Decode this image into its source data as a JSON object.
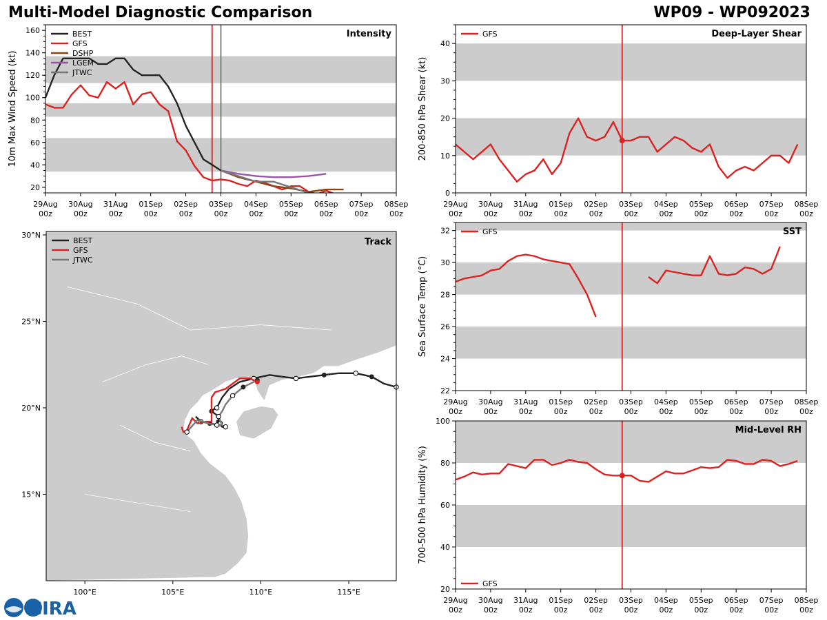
{
  "header": {
    "title": "Multi-Model Diagnostic Comparison",
    "storm_id": "WP09 - WP092023"
  },
  "colors": {
    "BEST": "#222222",
    "GFS": "#dd2020",
    "DSHP": "#8b4513",
    "LGEM": "#9955aa",
    "JTWC": "#777777",
    "band": "#cccccc",
    "land": "#cccccc"
  },
  "time_ticks": [
    "29Aug",
    "30Aug",
    "31Aug",
    "01Sep",
    "02Sep",
    "03Sep",
    "04Sep",
    "05Sep",
    "06Sep",
    "07Sep",
    "08Sep"
  ],
  "time_sub": "00z",
  "logo": {
    "text": "CIRA"
  },
  "chart_data": [
    {
      "id": "intensity",
      "type": "line",
      "title": "Intensity",
      "ylabel": "10m Max Wind Speed (kt)",
      "xlim": [
        0,
        10
      ],
      "ylim": [
        15,
        165
      ],
      "yticks": [
        20,
        40,
        60,
        80,
        100,
        120,
        140,
        160
      ],
      "bands": [
        [
          34,
          64
        ],
        [
          83,
          95
        ],
        [
          113,
          137
        ]
      ],
      "vlines": [
        {
          "x": 4.75,
          "color": "GFS"
        },
        {
          "x": 5.0,
          "color": "JTWC"
        }
      ],
      "legend": [
        "BEST",
        "GFS",
        "DSHP",
        "LGEM",
        "JTWC"
      ],
      "series": [
        {
          "name": "BEST",
          "x": [
            0,
            0.25,
            0.5,
            0.75,
            1,
            1.25,
            1.5,
            1.75,
            2,
            2.25,
            2.5,
            2.75,
            3,
            3.25,
            3.5,
            3.75,
            4,
            4.25,
            4.5,
            4.75,
            5
          ],
          "y": [
            100,
            120,
            135,
            135,
            135,
            135,
            130,
            130,
            135,
            135,
            125,
            120,
            120,
            120,
            110,
            95,
            75,
            60,
            45,
            40,
            35
          ]
        },
        {
          "name": "GFS",
          "x": [
            0,
            0.25,
            0.5,
            0.75,
            1,
            1.25,
            1.5,
            1.75,
            2,
            2.25,
            2.5,
            2.75,
            3,
            3.25,
            3.5,
            3.75,
            4,
            4.25,
            4.5,
            4.75,
            5,
            5.25,
            5.5,
            5.75,
            6,
            6.25,
            6.5,
            6.75,
            7,
            7.25,
            7.5,
            7.75,
            8,
            8.25
          ],
          "y": [
            94,
            91,
            91,
            103,
            111,
            102,
            100,
            114,
            108,
            114,
            94,
            103,
            105,
            94,
            88,
            61,
            53,
            39,
            29,
            26,
            27,
            26,
            23,
            21,
            26,
            24,
            21,
            18,
            21,
            21,
            16,
            14,
            17,
            14
          ]
        },
        {
          "name": "DSHP",
          "x": [
            5,
            5.5,
            6,
            6.5,
            7,
            7.5,
            8,
            8.5
          ],
          "y": [
            35,
            29,
            25,
            21,
            19,
            16,
            18,
            18
          ]
        },
        {
          "name": "LGEM",
          "x": [
            5,
            5.5,
            6,
            6.5,
            7,
            7.5,
            8
          ],
          "y": [
            35,
            32,
            30,
            29,
            29,
            30,
            32
          ]
        },
        {
          "name": "JTWC",
          "x": [
            5,
            5.5,
            6,
            6.5,
            7,
            7.5
          ],
          "y": [
            35,
            30,
            25,
            25,
            20,
            15
          ]
        }
      ]
    },
    {
      "id": "shear",
      "type": "line",
      "title": "Deep-Layer Shear",
      "ylabel": "200-850 hPa Shear (kt)",
      "xlim": [
        0,
        10
      ],
      "ylim": [
        0,
        45
      ],
      "yticks": [
        0,
        10,
        20,
        30,
        40
      ],
      "bands": [
        [
          10,
          20
        ],
        [
          30,
          40
        ]
      ],
      "vlines": [
        {
          "x": 4.75,
          "color": "GFS"
        }
      ],
      "marker": {
        "x": 4.75,
        "y": 14
      },
      "legend": [
        "GFS"
      ],
      "series": [
        {
          "name": "GFS",
          "x": [
            0,
            0.25,
            0.5,
            0.75,
            1,
            1.25,
            1.5,
            1.75,
            2,
            2.25,
            2.5,
            2.75,
            3,
            3.25,
            3.5,
            3.75,
            4,
            4.25,
            4.5,
            4.75,
            5,
            5.25,
            5.5,
            5.75,
            6,
            6.25,
            6.5,
            6.75,
            7,
            7.25,
            7.5,
            7.75,
            8,
            8.25,
            8.5,
            8.75,
            9,
            9.25,
            9.5,
            9.75
          ],
          "y": [
            13,
            11,
            9,
            11,
            13,
            9,
            6,
            3,
            5,
            6,
            9,
            5,
            8,
            16,
            20,
            15,
            14,
            15,
            19,
            14,
            14,
            15,
            15,
            11,
            13,
            15,
            14,
            12,
            11,
            13,
            7,
            4,
            6,
            7,
            6,
            8,
            10,
            10,
            8,
            13
          ]
        }
      ]
    },
    {
      "id": "sst",
      "type": "line",
      "title": "SST",
      "ylabel": "Sea Surface Temp (°C)",
      "xlim": [
        0,
        10
      ],
      "ylim": [
        22,
        32.5
      ],
      "yticks": [
        22,
        24,
        26,
        28,
        30,
        32
      ],
      "bands": [
        [
          24,
          26
        ],
        [
          28,
          30
        ],
        [
          32,
          32.5
        ]
      ],
      "vlines": [
        {
          "x": 4.75,
          "color": "GFS"
        }
      ],
      "legend": [
        "GFS"
      ],
      "series": [
        {
          "name": "GFS",
          "x": [
            0,
            0.25,
            0.5,
            0.75,
            1,
            1.25,
            1.5,
            1.75,
            2,
            2.25,
            2.5,
            2.75,
            3,
            3.25,
            3.5,
            3.75,
            4
          ],
          "y": [
            28.8,
            29.0,
            29.1,
            29.2,
            29.5,
            29.6,
            30.1,
            30.4,
            30.5,
            30.4,
            30.2,
            30.1,
            30.0,
            29.9,
            29.0,
            28.0,
            26.6
          ]
        },
        {
          "name": "GFS",
          "x": [
            5.5,
            5.75,
            6,
            6.25,
            6.5,
            6.75,
            7,
            7.25,
            7.5,
            7.75,
            8,
            8.25,
            8.5,
            8.75,
            9,
            9.25
          ],
          "y": [
            29.1,
            28.7,
            29.5,
            29.4,
            29.3,
            29.2,
            29.2,
            30.4,
            29.3,
            29.2,
            29.3,
            29.7,
            29.6,
            29.3,
            29.6,
            31.0
          ]
        }
      ]
    },
    {
      "id": "rh",
      "type": "line",
      "title": "Mid-Level RH",
      "ylabel": "700-500 hPa Humidity (%)",
      "xlim": [
        0,
        10
      ],
      "ylim": [
        20,
        100
      ],
      "yticks": [
        20,
        40,
        60,
        80,
        100
      ],
      "bands": [
        [
          40,
          60
        ],
        [
          80,
          100
        ]
      ],
      "vlines": [
        {
          "x": 4.75,
          "color": "GFS"
        }
      ],
      "marker": {
        "x": 4.75,
        "y": 74
      },
      "legend": [
        "GFS"
      ],
      "legend_position": "bottom-left",
      "series": [
        {
          "name": "GFS",
          "x": [
            0,
            0.25,
            0.5,
            0.75,
            1,
            1.25,
            1.5,
            1.75,
            2,
            2.25,
            2.5,
            2.75,
            3,
            3.25,
            3.5,
            3.75,
            4,
            4.25,
            4.5,
            4.75,
            5,
            5.25,
            5.5,
            5.75,
            6,
            6.25,
            6.5,
            6.75,
            7,
            7.25,
            7.5,
            7.75,
            8,
            8.25,
            8.5,
            8.75,
            9,
            9.25,
            9.5,
            9.75
          ],
          "y": [
            72,
            73.5,
            75.5,
            74.5,
            75,
            75,
            79.5,
            78.5,
            77.5,
            81.5,
            81.5,
            79,
            80,
            81.5,
            80.5,
            80,
            77,
            74.5,
            74,
            74,
            74,
            71.5,
            71,
            73.5,
            76,
            75,
            75,
            76.5,
            78,
            77.5,
            78,
            81.5,
            81,
            79.5,
            79.5,
            81.5,
            81,
            78.5,
            79.5,
            81
          ]
        }
      ]
    },
    {
      "id": "track",
      "type": "scatter",
      "title": "Track",
      "xlim": [
        97.8,
        117.7
      ],
      "ylim": [
        10,
        30.2
      ],
      "xticks": [
        100,
        105,
        110,
        115
      ],
      "xtick_labels": [
        "100°E",
        "105°E",
        "110°E",
        "115°E"
      ],
      "yticks": [
        15,
        20,
        25,
        30
      ],
      "ytick_labels": [
        "15°N",
        "20°N",
        "25°N",
        "30°N"
      ],
      "legend": [
        "BEST",
        "GFS",
        "JTWC"
      ],
      "series": [
        {
          "name": "BEST",
          "lon": [
            117.7,
            117,
            116.3,
            115.4,
            114.4,
            113.6,
            112.8,
            112,
            111.2,
            110.5,
            109.6,
            108.8,
            108.2,
            107.8,
            107.5,
            107.3,
            107.2,
            107.6,
            107.6,
            107.7,
            107.8,
            108.0,
            107.6,
            107.1,
            106.6,
            106.3
          ],
          "lat": [
            21.2,
            21.4,
            21.8,
            22.0,
            22.0,
            21.9,
            21.8,
            21.7,
            21.8,
            21.9,
            21.7,
            21.5,
            21.1,
            20.6,
            20.0,
            19.9,
            19.8,
            19.5,
            19.2,
            19.1,
            18.9,
            18.9,
            19.0,
            19.1,
            19.2,
            19.5
          ],
          "open": [
            1,
            0,
            0,
            1,
            0,
            0,
            0,
            1,
            0,
            0,
            1,
            0,
            0,
            0,
            1,
            0,
            0,
            1,
            0,
            1,
            0,
            1,
            0,
            0,
            1,
            0
          ],
          "dot": [
            0,
            0,
            1,
            0,
            0,
            1,
            0,
            0,
            0,
            0,
            1,
            0,
            0,
            0,
            1,
            0,
            1,
            0,
            1,
            0,
            0,
            1,
            0,
            1,
            1,
            0
          ]
        },
        {
          "name": "GFS",
          "lon": [
            109.8,
            109.4,
            108.8,
            108.4,
            108.0,
            107.4,
            107.2,
            107.2,
            106.9,
            106.4,
            106.1,
            105.8,
            105.6,
            105.5
          ],
          "lat": [
            21.5,
            21.7,
            21.7,
            21.4,
            21.1,
            20.9,
            20.6,
            19.2,
            19.2,
            19.1,
            19.4,
            18.7,
            18.6,
            18.9
          ]
        },
        {
          "name": "JTWC",
          "lon": [
            109.8,
            109.0,
            108.4,
            108.0,
            107.8,
            107.6,
            107.8,
            107.5,
            107.0,
            106.4,
            105.8
          ],
          "lat": [
            21.6,
            21.2,
            20.7,
            20.2,
            19.8,
            19.5,
            19.0,
            19.0,
            19.1,
            19.3,
            18.6
          ],
          "open": [
            0,
            0,
            1,
            0,
            0,
            1,
            0,
            1,
            0,
            0,
            1
          ],
          "dot": [
            1,
            1,
            0,
            0,
            0,
            0,
            0,
            0,
            0,
            0,
            0
          ]
        }
      ]
    }
  ]
}
